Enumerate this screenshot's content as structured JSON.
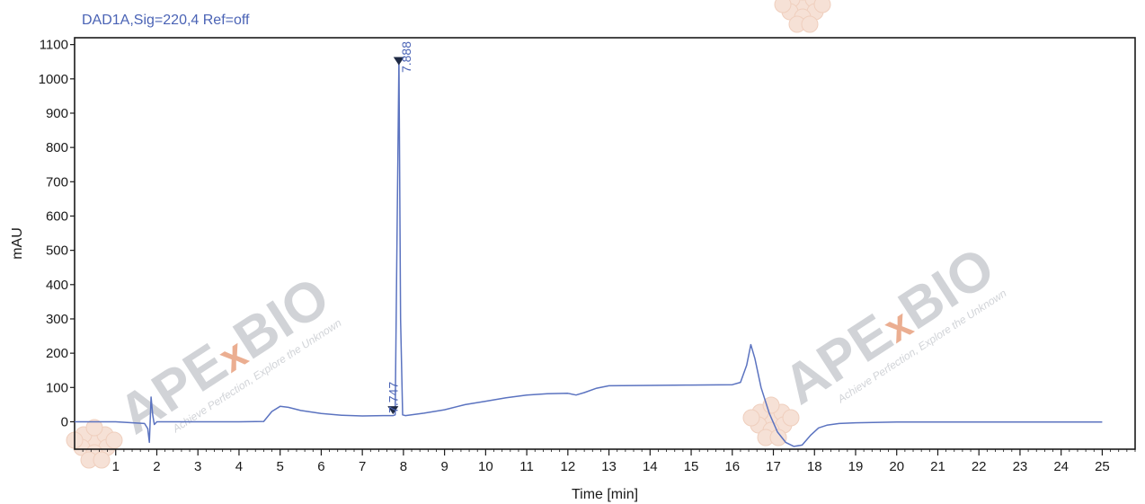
{
  "chart_data": {
    "type": "line",
    "title": "DAD1A,Sig=220,4  Ref=off",
    "xlabel": "Time [min]",
    "ylabel": "mAU",
    "xlim": [
      0,
      25.8
    ],
    "ylim": [
      -80,
      1120
    ],
    "x_ticks": [
      1,
      2,
      3,
      4,
      5,
      6,
      7,
      8,
      9,
      10,
      11,
      12,
      13,
      14,
      15,
      16,
      17,
      18,
      19,
      20,
      21,
      22,
      23,
      24,
      25
    ],
    "y_ticks": [
      0,
      100,
      200,
      300,
      400,
      500,
      600,
      700,
      800,
      900,
      1000,
      1100
    ],
    "grid": false,
    "series": [
      {
        "color": "#5b73c0",
        "x": [
          0.0,
          1.0,
          1.7,
          1.78,
          1.82,
          1.86,
          1.9,
          1.94,
          2.0,
          2.1,
          3.0,
          4.0,
          4.6,
          4.8,
          5.0,
          5.2,
          5.5,
          6.0,
          6.5,
          7.0,
          7.5,
          7.75,
          7.8,
          7.84,
          7.89,
          7.93,
          7.98,
          8.05,
          8.5,
          9.0,
          9.5,
          10.0,
          10.5,
          11.0,
          11.5,
          12.0,
          12.2,
          12.4,
          12.7,
          13.0,
          14.0,
          15.0,
          16.0,
          16.2,
          16.35,
          16.45,
          16.55,
          16.7,
          16.9,
          17.1,
          17.3,
          17.5,
          17.7,
          17.9,
          18.1,
          18.3,
          18.6,
          19.0,
          20.0,
          22.0,
          25.0
        ],
        "y": [
          0,
          0,
          -5,
          -20,
          -60,
          72,
          20,
          -8,
          0,
          0,
          0,
          0,
          1,
          30,
          45,
          42,
          33,
          24,
          19,
          17,
          18,
          18,
          20,
          500,
          1060,
          300,
          20,
          18,
          25,
          35,
          50,
          60,
          70,
          78,
          82,
          83,
          78,
          85,
          98,
          105,
          106,
          107,
          108,
          115,
          165,
          225,
          185,
          100,
          25,
          -30,
          -60,
          -72,
          -68,
          -40,
          -18,
          -10,
          -5,
          -3,
          -1,
          -1,
          -1
        ]
      }
    ],
    "annotations": [
      {
        "text": "7.747",
        "x": 7.747
      },
      {
        "text": "7.888",
        "x": 7.888
      }
    ]
  },
  "watermark": {
    "logo": "APExBIO",
    "slogan": "Achieve Perfection, Explore the Unknown",
    "logo_color": "#c9ccd1",
    "x_color": "#e8a07e"
  },
  "colors": {
    "trace": "#5b73c0",
    "title": "#4a63b5",
    "axis": "#1a1a1a"
  }
}
